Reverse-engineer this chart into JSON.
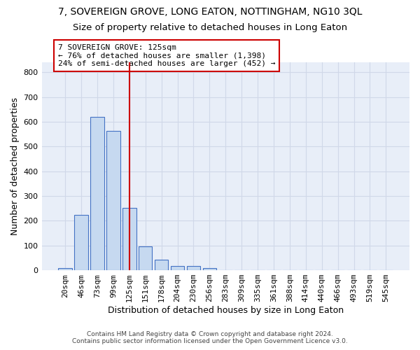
{
  "title_line1": "7, SOVEREIGN GROVE, LONG EATON, NOTTINGHAM, NG10 3QL",
  "title_line2": "Size of property relative to detached houses in Long Eaton",
  "xlabel": "Distribution of detached houses by size in Long Eaton",
  "ylabel": "Number of detached properties",
  "categories": [
    "20sqm",
    "46sqm",
    "73sqm",
    "99sqm",
    "125sqm",
    "151sqm",
    "178sqm",
    "204sqm",
    "230sqm",
    "256sqm",
    "283sqm",
    "309sqm",
    "335sqm",
    "361sqm",
    "388sqm",
    "414sqm",
    "440sqm",
    "466sqm",
    "493sqm",
    "519sqm",
    "545sqm"
  ],
  "values": [
    8,
    225,
    620,
    563,
    252,
    96,
    42,
    17,
    17,
    10,
    0,
    0,
    0,
    0,
    0,
    0,
    0,
    0,
    0,
    0,
    0
  ],
  "bar_color": "#c6d9f0",
  "bar_edge_color": "#4472c4",
  "vline_x_index": 4,
  "vline_color": "#cc0000",
  "annotation_text": "7 SOVEREIGN GROVE: 125sqm\n← 76% of detached houses are smaller (1,398)\n24% of semi-detached houses are larger (452) →",
  "annotation_box_color": "#ffffff",
  "annotation_box_edge": "#cc0000",
  "ylim": [
    0,
    840
  ],
  "yticks": [
    0,
    100,
    200,
    300,
    400,
    500,
    600,
    700,
    800
  ],
  "grid_color": "#d0d8e8",
  "background_color": "#e8eef8",
  "footer_line1": "Contains HM Land Registry data © Crown copyright and database right 2024.",
  "footer_line2": "Contains public sector information licensed under the Open Government Licence v3.0.",
  "title_fontsize": 10,
  "subtitle_fontsize": 9.5,
  "axis_label_fontsize": 9,
  "tick_fontsize": 8,
  "annotation_fontsize": 8
}
